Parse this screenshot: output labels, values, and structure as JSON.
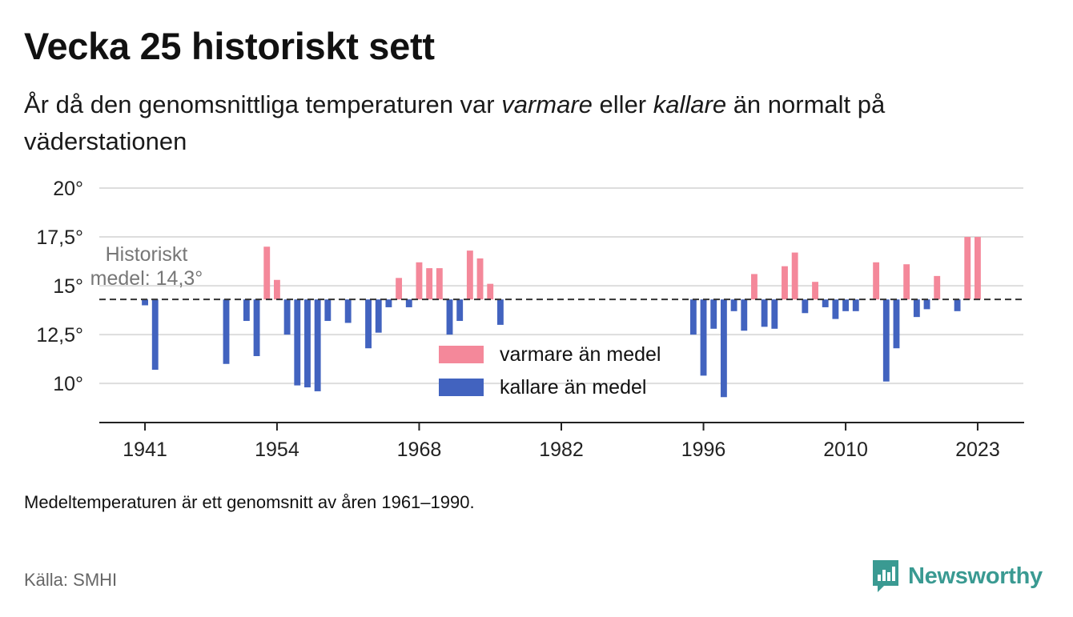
{
  "header": {
    "title": "Vecka 25 historiskt sett",
    "subtitle_parts": [
      "År då den genomsnittliga temperaturen var ",
      "varmare",
      " eller ",
      "kallare",
      " än normalt på väderstationen"
    ]
  },
  "chart_data": {
    "type": "bar",
    "baseline": 14.3,
    "baseline_label": [
      "Historiskt",
      "medel: 14,3°"
    ],
    "ylim": [
      8,
      20
    ],
    "yticks": [
      10,
      12.5,
      15,
      17.5,
      20
    ],
    "ytick_labels": [
      "10°",
      "12,5°",
      "15°",
      "17,5°",
      "20°"
    ],
    "xlim": [
      1936.5,
      2027.5
    ],
    "xticks": [
      1941,
      1954,
      1968,
      1982,
      1996,
      2010,
      2023
    ],
    "xtick_labels": [
      "1941",
      "1954",
      "1968",
      "1982",
      "1996",
      "2010",
      "2023"
    ],
    "grid": true,
    "legend_position": "center",
    "legend": [
      {
        "label": "varmare än medel",
        "color": "#f4889a"
      },
      {
        "label": "kallare än medel",
        "color": "#4263bf"
      }
    ],
    "series": [
      {
        "name": "varmare än medel",
        "color": "#f4889a",
        "points": [
          [
            1953,
            17.0
          ],
          [
            1954,
            15.3
          ],
          [
            1966,
            15.4
          ],
          [
            1968,
            16.2
          ],
          [
            1969,
            15.9
          ],
          [
            1970,
            15.9
          ],
          [
            1973,
            16.8
          ],
          [
            1974,
            16.4
          ],
          [
            1975,
            15.1
          ],
          [
            2001,
            15.6
          ],
          [
            2004,
            16.0
          ],
          [
            2005,
            16.7
          ],
          [
            2007,
            15.2
          ],
          [
            2013,
            16.2
          ],
          [
            2016,
            16.1
          ],
          [
            2019,
            15.5
          ],
          [
            2022,
            17.5
          ],
          [
            2023,
            17.5
          ]
        ]
      },
      {
        "name": "kallare än medel",
        "color": "#4263bf",
        "points": [
          [
            1941,
            14.0
          ],
          [
            1942,
            10.7
          ],
          [
            1949,
            11.0
          ],
          [
            1951,
            13.2
          ],
          [
            1952,
            11.4
          ],
          [
            1955,
            12.5
          ],
          [
            1956,
            9.9
          ],
          [
            1957,
            9.8
          ],
          [
            1958,
            9.6
          ],
          [
            1959,
            13.2
          ],
          [
            1961,
            13.1
          ],
          [
            1963,
            11.8
          ],
          [
            1964,
            12.6
          ],
          [
            1965,
            13.9
          ],
          [
            1967,
            13.9
          ],
          [
            1971,
            12.5
          ],
          [
            1972,
            13.2
          ],
          [
            1976,
            13.0
          ],
          [
            1995,
            12.5
          ],
          [
            1996,
            10.4
          ],
          [
            1997,
            12.8
          ],
          [
            1998,
            9.3
          ],
          [
            1999,
            13.7
          ],
          [
            2000,
            12.7
          ],
          [
            2002,
            12.9
          ],
          [
            2003,
            12.8
          ],
          [
            2006,
            13.6
          ],
          [
            2008,
            13.9
          ],
          [
            2009,
            13.3
          ],
          [
            2010,
            13.7
          ],
          [
            2011,
            13.7
          ],
          [
            2014,
            10.1
          ],
          [
            2015,
            11.8
          ],
          [
            2017,
            13.4
          ],
          [
            2018,
            13.8
          ],
          [
            2021,
            13.7
          ]
        ]
      }
    ]
  },
  "footnote": "Medeltemperaturen är ett genomsnitt av åren 1961–1990.",
  "source": "Källa: SMHI",
  "brand": {
    "name": "Newsworthy",
    "color": "#3a9a92",
    "icon": "newsworthy-logo-icon"
  }
}
